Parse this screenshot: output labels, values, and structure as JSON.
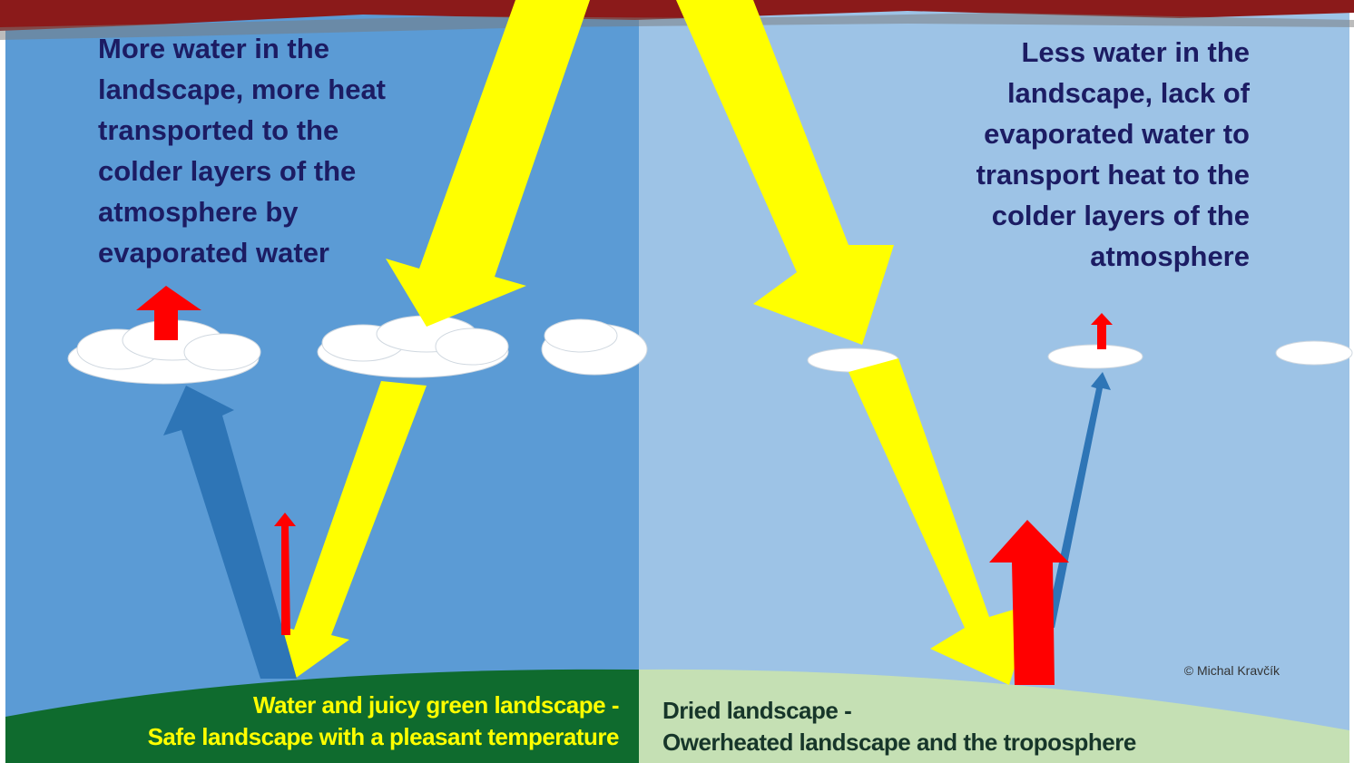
{
  "left_panel": {
    "description": [
      "More water in the",
      "landscape, more heat",
      "transported to the",
      "colder layers of the",
      "atmosphere by",
      "evaporated water"
    ],
    "ground_caption": [
      "Water and juicy green landscape -",
      "Safe landscape with a pleasant temperature"
    ]
  },
  "right_panel": {
    "description": [
      "Less water in the",
      "landscape, lack of",
      "evaporated water to",
      "transport heat to the",
      "colder layers of the",
      "atmosphere"
    ],
    "ground_caption": [
      "Dried landscape -",
      "Owerheated landscape and  the troposphere"
    ]
  },
  "credit": "© Michal Kravčík"
}
